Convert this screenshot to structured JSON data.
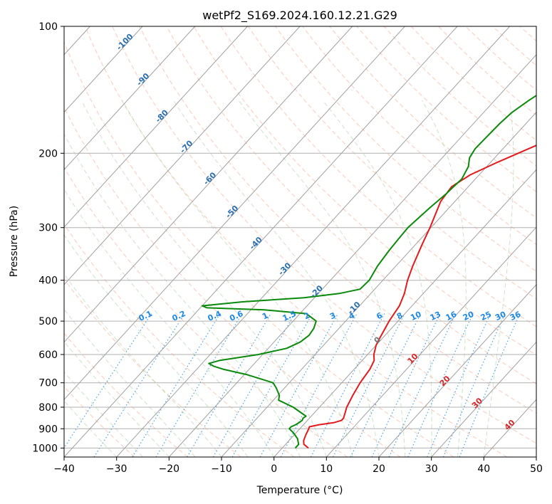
{
  "chart_data": {
    "type": "line",
    "title": "wetPf2_S169.2024.160.12.21.G29",
    "xlabel": "Temperature (°C)",
    "ylabel": "Pressure (hPa)",
    "xlim": [
      -40,
      50
    ],
    "ylim": [
      1050,
      100
    ],
    "y_scale": "log",
    "grid": true,
    "x_ticks": [
      -40,
      -30,
      -20,
      -10,
      0,
      10,
      20,
      30,
      40,
      50
    ],
    "x_tick_labels": [
      "−40",
      "−30",
      "−20",
      "−10",
      "0",
      "10",
      "20",
      "30",
      "40",
      "50"
    ],
    "y_ticks": [
      100,
      200,
      300,
      400,
      500,
      600,
      700,
      800,
      900,
      1000
    ],
    "y_tick_labels": [
      "100",
      "200",
      "300",
      "400",
      "500",
      "600",
      "700",
      "800",
      "900",
      "1000"
    ],
    "isotherm_labels": [
      "-100",
      "-90",
      "-80",
      "-70",
      "-60",
      "-50",
      "-40",
      "-30",
      "-20",
      "-10",
      "0",
      "10",
      "20",
      "30",
      "40"
    ],
    "mixing_ratio_labels": [
      "0.1",
      "0.2",
      "0.4",
      "0.6",
      "1",
      "1.5",
      "2",
      "3",
      "4",
      "6",
      "8",
      "10",
      "13",
      "16",
      "20",
      "25",
      "30",
      "36"
    ],
    "series": [
      {
        "color": "#e31a1c",
        "points": [
          [
            1000,
            5.0
          ],
          [
            980,
            3.5
          ],
          [
            960,
            2.8
          ],
          [
            930,
            2.2
          ],
          [
            905,
            1.8
          ],
          [
            890,
            1.5
          ],
          [
            880,
            3.0
          ],
          [
            870,
            5.5
          ],
          [
            860,
            6.5
          ],
          [
            850,
            6.5
          ],
          [
            830,
            6.0
          ],
          [
            800,
            5.2
          ],
          [
            750,
            4.3
          ],
          [
            700,
            3.5
          ],
          [
            650,
            3.0
          ],
          [
            620,
            2.3
          ],
          [
            600,
            1.2
          ],
          [
            570,
            0.0
          ],
          [
            550,
            -0.5
          ],
          [
            500,
            -1.7
          ],
          [
            460,
            -2.4
          ],
          [
            430,
            -3.6
          ],
          [
            400,
            -5.3
          ],
          [
            370,
            -6.8
          ],
          [
            330,
            -8.7
          ],
          [
            300,
            -10.2
          ],
          [
            280,
            -11.4
          ],
          [
            260,
            -12.7
          ],
          [
            240,
            -13.2
          ],
          [
            225,
            -11.7
          ],
          [
            210,
            -8.7
          ],
          [
            195,
            -5.1
          ],
          [
            185,
            -2.5
          ],
          [
            175,
            0.5
          ],
          [
            160,
            3.8
          ],
          [
            145,
            6.8
          ],
          [
            130,
            9.6
          ],
          [
            120,
            11.4
          ],
          [
            110,
            13.0
          ],
          [
            100,
            14.5
          ]
        ]
      },
      {
        "color": "#0a8a0a",
        "points": [
          [
            1000,
            2.5
          ],
          [
            980,
            2.5
          ],
          [
            950,
            1.3
          ],
          [
            920,
            -0.5
          ],
          [
            900,
            -2.0
          ],
          [
            890,
            -2.0
          ],
          [
            880,
            -1.5
          ],
          [
            870,
            -1.2
          ],
          [
            860,
            -1.0
          ],
          [
            850,
            -1.2
          ],
          [
            840,
            -1.0
          ],
          [
            830,
            -2.0
          ],
          [
            800,
            -5.0
          ],
          [
            770,
            -9.0
          ],
          [
            750,
            -9.7
          ],
          [
            720,
            -11.6
          ],
          [
            700,
            -13.1
          ],
          [
            670,
            -19.4
          ],
          [
            650,
            -25.0
          ],
          [
            640,
            -27.2
          ],
          [
            630,
            -28.7
          ],
          [
            620,
            -27.2
          ],
          [
            600,
            -20.8
          ],
          [
            580,
            -16.5
          ],
          [
            560,
            -15.0
          ],
          [
            540,
            -14.5
          ],
          [
            520,
            -14.8
          ],
          [
            500,
            -15.6
          ],
          [
            480,
            -18.8
          ],
          [
            470,
            -27.5
          ],
          [
            465,
            -38.7
          ],
          [
            460,
            -40.0
          ],
          [
            450,
            -33.0
          ],
          [
            440,
            -22.0
          ],
          [
            430,
            -16.0
          ],
          [
            420,
            -12.8
          ],
          [
            400,
            -12.6
          ],
          [
            370,
            -13.5
          ],
          [
            340,
            -14.0
          ],
          [
            320,
            -14.2
          ],
          [
            300,
            -14.4
          ],
          [
            270,
            -13.7
          ],
          [
            250,
            -13.0
          ],
          [
            230,
            -12.6
          ],
          [
            215,
            -13.5
          ],
          [
            205,
            -14.8
          ],
          [
            195,
            -15.3
          ],
          [
            185,
            -15.2
          ],
          [
            170,
            -15.0
          ],
          [
            160,
            -14.6
          ],
          [
            150,
            -13.5
          ],
          [
            140,
            -12.0
          ],
          [
            130,
            -10.3
          ],
          [
            120,
            -8.4
          ],
          [
            110,
            -6.2
          ],
          [
            100,
            -3.8
          ]
        ]
      }
    ]
  }
}
